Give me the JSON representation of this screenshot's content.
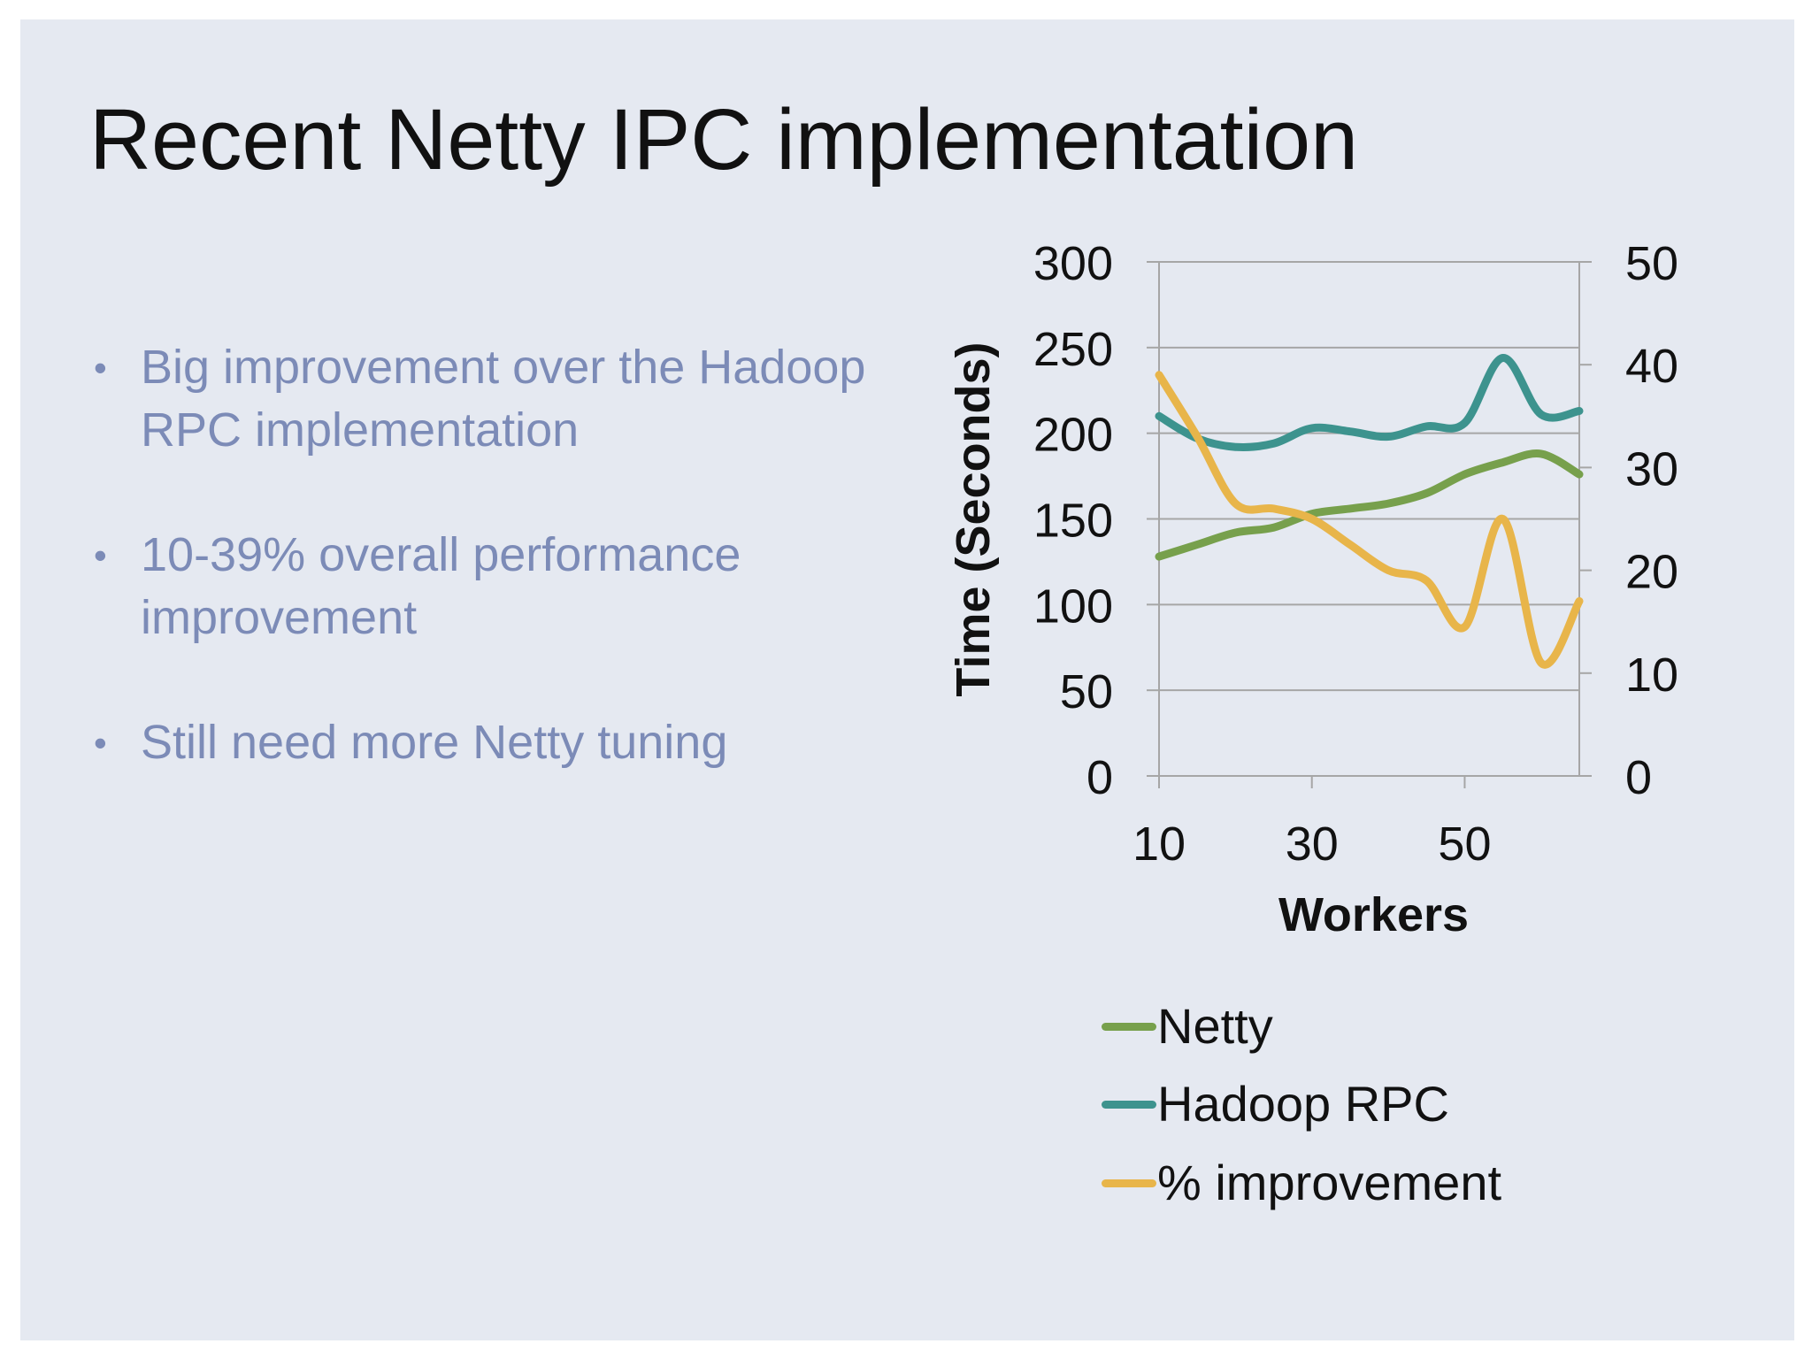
{
  "slide": {
    "title": "Recent Netty IPC implementation",
    "bullets": [
      "Big improvement over the Hadoop RPC implementation",
      "10-39% overall performance improvement",
      "Still need more Netty tuning"
    ],
    "bullet_glyph": "•",
    "background_color": "#e5e9f1",
    "bullet_text_color": "#7c8bb7"
  },
  "chart_data": {
    "type": "line",
    "title": "",
    "xlabel": "Workers",
    "ylabel": "Time (Seconds)",
    "y2label": "",
    "xlim": [
      10,
      65
    ],
    "xticks": [
      10,
      30,
      50
    ],
    "ylim": [
      0,
      300
    ],
    "yticks": [
      0,
      50,
      100,
      150,
      200,
      250,
      300
    ],
    "y2lim": [
      0,
      50
    ],
    "y2ticks": [
      0,
      10,
      20,
      30,
      40,
      50
    ],
    "grid": true,
    "smooth": true,
    "legend_position": "bottom",
    "series": [
      {
        "name": "Netty",
        "axis": "left",
        "color": "#77a04c",
        "x": [
          10,
          15,
          20,
          25,
          30,
          35,
          40,
          45,
          50,
          55,
          60,
          65
        ],
        "y": [
          128,
          135,
          142,
          145,
          153,
          156,
          159,
          165,
          176,
          183,
          188,
          176
        ]
      },
      {
        "name": "Hadoop RPC",
        "axis": "left",
        "color": "#3d938e",
        "x": [
          10,
          15,
          20,
          25,
          30,
          35,
          40,
          45,
          50,
          55,
          60,
          65
        ],
        "y": [
          210,
          197,
          192,
          194,
          203,
          201,
          198,
          204,
          206,
          244,
          211,
          213
        ]
      },
      {
        "name": "% improvement",
        "axis": "right",
        "color": "#e8b54a",
        "x": [
          10,
          15,
          20,
          25,
          30,
          35,
          40,
          45,
          50,
          55,
          60,
          65
        ],
        "y": [
          39,
          33,
          26.5,
          26,
          25,
          22.5,
          20,
          19,
          14.5,
          25,
          11,
          17
        ]
      }
    ]
  }
}
